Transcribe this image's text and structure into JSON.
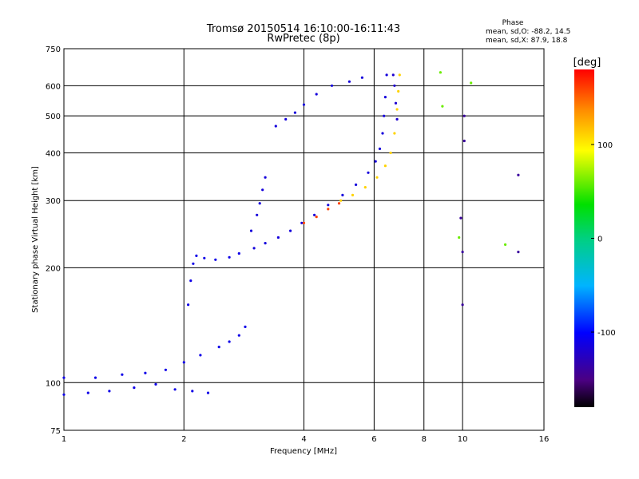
{
  "header": {
    "title_line1": "Tromsø 20150514 16:10:00-16:11:43",
    "title_line2": "RwPretec (8p)",
    "phase_heading": "Phase",
    "phase_stat_o": "mean, sd,O: -88.2, 14.5",
    "phase_stat_x": "mean, sd,X:  87.9, 18.8"
  },
  "colorbar": {
    "label": "[deg]",
    "ticks": [
      "100",
      "0",
      "-100"
    ],
    "tick_values": [
      100,
      0,
      -100
    ],
    "range": [
      -180,
      180
    ]
  },
  "chart_data": {
    "type": "scatter",
    "xlabel": "Frequency [MHz]",
    "ylabel": "Stationary phase Virtual Height [km]",
    "x_scale": "log",
    "y_scale": "log",
    "xlim": [
      1,
      16
    ],
    "ylim": [
      75,
      750
    ],
    "grid": true,
    "x_ticks": [
      1,
      2,
      4,
      6,
      8,
      10,
      16
    ],
    "x_tick_labels": [
      "1",
      "2",
      "4",
      "6",
      "8",
      "10",
      "16"
    ],
    "y_ticks": [
      75,
      100,
      200,
      300,
      400,
      500,
      600,
      750
    ],
    "y_tick_labels": [
      "75",
      "100",
      "200",
      "300",
      "400",
      "500",
      "600",
      "750"
    ],
    "traces": [
      {
        "phase": -110,
        "points": [
          [
            1.0,
            93
          ],
          [
            1.15,
            94
          ],
          [
            1.3,
            95
          ],
          [
            1.5,
            97
          ],
          [
            1.7,
            99
          ],
          [
            1.9,
            96
          ],
          [
            2.1,
            95
          ],
          [
            2.3,
            94
          ]
        ]
      },
      {
        "phase": -110,
        "points": [
          [
            1.0,
            103
          ],
          [
            1.2,
            103
          ],
          [
            1.4,
            105
          ],
          [
            1.6,
            106
          ],
          [
            1.8,
            108
          ],
          [
            2.0,
            113
          ],
          [
            2.2,
            118
          ],
          [
            2.45,
            124
          ],
          [
            2.6,
            128
          ],
          [
            2.75,
            133
          ],
          [
            2.85,
            140
          ]
        ]
      },
      {
        "phase": -110,
        "points": [
          [
            2.05,
            160
          ],
          [
            2.08,
            185
          ],
          [
            2.11,
            205
          ],
          [
            2.15,
            215
          ],
          [
            2.25,
            212
          ],
          [
            2.4,
            210
          ],
          [
            2.6,
            213
          ],
          [
            2.75,
            218
          ]
        ]
      },
      {
        "phase": -115,
        "points": [
          [
            3.0,
            225
          ],
          [
            3.2,
            232
          ],
          [
            3.45,
            240
          ],
          [
            3.7,
            250
          ],
          [
            3.95,
            262
          ],
          [
            4.25,
            275
          ],
          [
            4.6,
            292
          ],
          [
            5.0,
            310
          ],
          [
            5.4,
            330
          ],
          [
            5.8,
            355
          ],
          [
            6.05,
            380
          ],
          [
            6.2,
            410
          ],
          [
            6.3,
            450
          ],
          [
            6.35,
            500
          ],
          [
            6.4,
            560
          ],
          [
            6.45,
            640
          ]
        ]
      },
      {
        "phase": -115,
        "points": [
          [
            2.95,
            250
          ],
          [
            3.05,
            275
          ],
          [
            3.1,
            295
          ],
          [
            3.15,
            320
          ],
          [
            3.2,
            345
          ]
        ]
      },
      {
        "phase": -115,
        "points": [
          [
            3.4,
            470
          ],
          [
            3.6,
            490
          ],
          [
            3.8,
            510
          ],
          [
            4.0,
            535
          ],
          [
            4.3,
            570
          ],
          [
            4.7,
            600
          ],
          [
            5.2,
            615
          ],
          [
            5.6,
            630
          ]
        ]
      },
      {
        "phase": -120,
        "points": [
          [
            6.7,
            640
          ],
          [
            6.75,
            600
          ],
          [
            6.8,
            540
          ],
          [
            6.85,
            490
          ]
        ]
      },
      {
        "phase": 160,
        "points": [
          [
            4.0,
            262
          ],
          [
            4.3,
            272
          ],
          [
            4.6,
            285
          ],
          [
            4.9,
            295
          ]
        ]
      },
      {
        "phase": 110,
        "points": [
          [
            4.95,
            300
          ],
          [
            5.3,
            310
          ],
          [
            5.7,
            325
          ],
          [
            6.1,
            345
          ],
          [
            6.4,
            370
          ],
          [
            6.6,
            400
          ],
          [
            6.75,
            450
          ],
          [
            6.85,
            520
          ],
          [
            6.9,
            580
          ],
          [
            6.95,
            640
          ]
        ]
      },
      {
        "phase": -140,
        "points": [
          [
            9.9,
            270
          ],
          [
            10.0,
            220
          ],
          [
            10.0,
            160
          ],
          [
            10.1,
            500
          ],
          [
            10.1,
            430
          ],
          [
            13.8,
            350
          ],
          [
            13.8,
            220
          ]
        ]
      },
      {
        "phase": 60,
        "points": [
          [
            8.8,
            650
          ],
          [
            8.9,
            530
          ],
          [
            9.8,
            240
          ],
          [
            10.5,
            610
          ],
          [
            12.8,
            230
          ]
        ]
      }
    ]
  }
}
